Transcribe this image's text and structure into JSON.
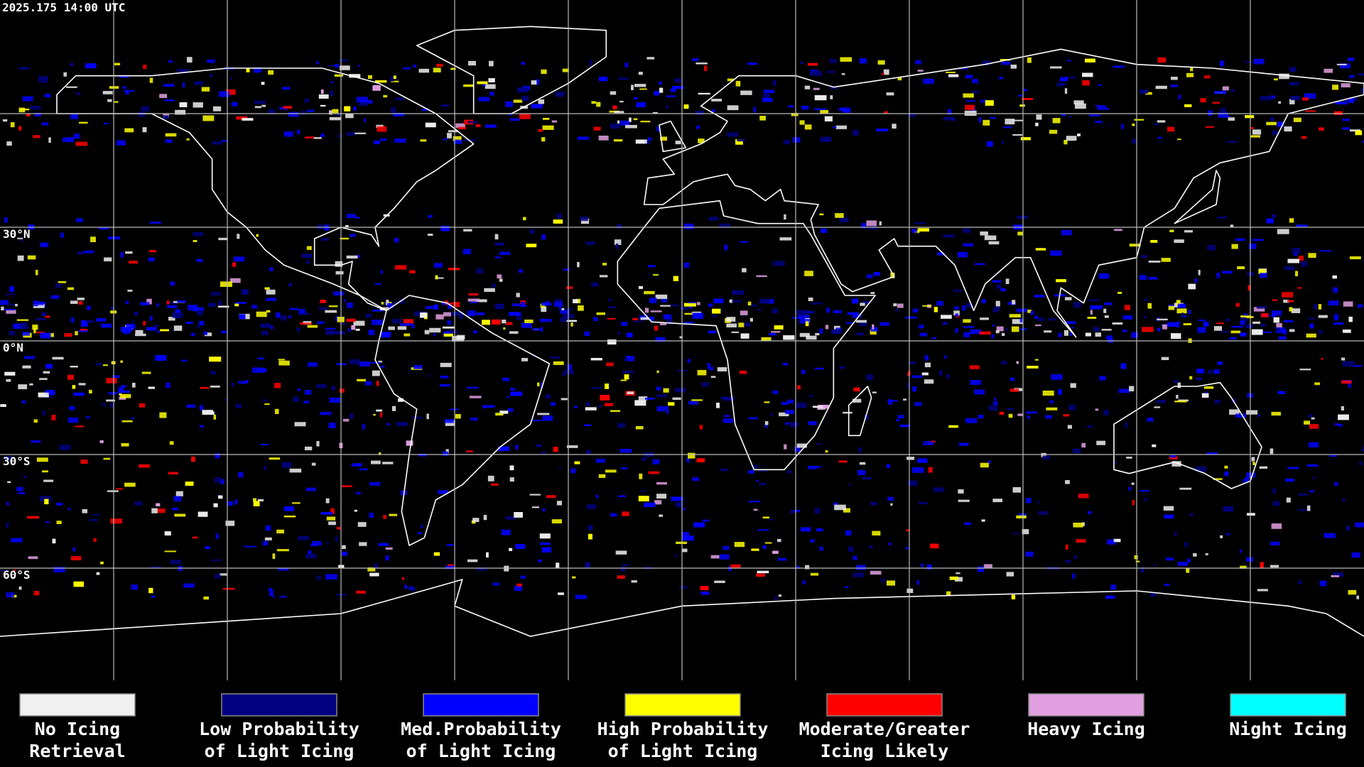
{
  "timestamp": "2025.175 14:00 UTC",
  "lat_labels": [
    "30°N",
    "0°N",
    "30°S",
    "60°S"
  ],
  "legend": [
    {
      "color": "#f0f0f0",
      "lines": [
        "No Icing",
        "Retrieval"
      ]
    },
    {
      "color": "#000080",
      "lines": [
        "Low Probability",
        "of Light Icing"
      ]
    },
    {
      "color": "#0000ff",
      "lines": [
        "Med.Probability",
        "of Light Icing"
      ]
    },
    {
      "color": "#ffff00",
      "lines": [
        "High Probability",
        "of Light Icing"
      ]
    },
    {
      "color": "#ff0000",
      "lines": [
        "Moderate/Greater",
        "Icing Likely"
      ]
    },
    {
      "color": "#e0a0e0",
      "lines": [
        "Heavy Icing"
      ]
    },
    {
      "color": "#00ffff",
      "lines": [
        "Night Icing"
      ]
    }
  ]
}
